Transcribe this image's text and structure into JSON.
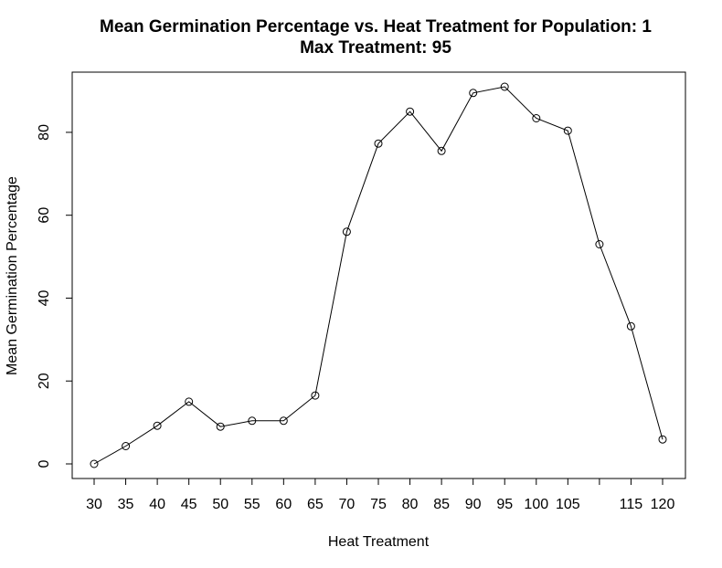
{
  "chart_data": {
    "type": "line",
    "title": "Mean Germination Percentage vs. Heat Treatment for Population: 1",
    "subtitle": "Max Treatment: 95",
    "xlabel": "Heat Treatment",
    "ylabel": "Mean Germination Percentage",
    "x_tick_labels": [
      "30",
      "35",
      "40",
      "45",
      "50",
      "55",
      "60",
      "65",
      "70",
      "75",
      "80",
      "85",
      "90",
      "95",
      "100",
      "105",
      "115",
      "120"
    ],
    "x_tick_values": [
      30,
      35,
      40,
      45,
      50,
      55,
      60,
      65,
      70,
      75,
      80,
      85,
      90,
      95,
      100,
      105,
      115,
      120
    ],
    "x_extra_ticks": [
      110
    ],
    "y_tick_values": [
      0,
      20,
      40,
      60,
      80
    ],
    "xlim": [
      30,
      120
    ],
    "ylim": [
      0,
      91
    ],
    "grid": false,
    "markers": "open-circle",
    "line_color": "#000000",
    "series": [
      {
        "x": [
          30,
          35,
          40,
          45,
          50,
          55,
          60,
          65,
          70,
          75,
          80,
          85,
          90,
          95,
          100,
          105,
          110,
          115,
          120
        ],
        "values": [
          0,
          4.3,
          9.2,
          15,
          9,
          10.4,
          10.4,
          16.5,
          56,
          77.3,
          85,
          75.5,
          89.5,
          91,
          83.4,
          80.4,
          53,
          33.2,
          5.9
        ]
      }
    ]
  }
}
